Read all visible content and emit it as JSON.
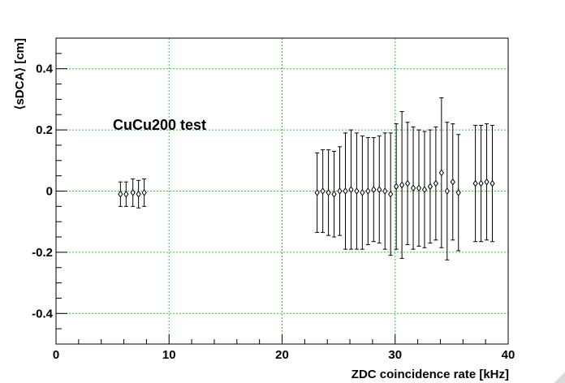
{
  "chart_data": {
    "type": "scatter",
    "title": "",
    "annotation": "CuCu200 test",
    "xlabel": "ZDC coincidence rate [kHz]",
    "ylabel": "⟨sDCA⟩ [cm]",
    "xlim": [
      0,
      40
    ],
    "ylim": [
      -0.5,
      0.5
    ],
    "x_ticks": [
      0,
      10,
      20,
      30,
      40
    ],
    "y_ticks": [
      -0.4,
      -0.2,
      0,
      0.2,
      0.4
    ],
    "x_tick_labels": [
      "0",
      "10",
      "20",
      "30",
      "40"
    ],
    "y_tick_labels": [
      "-0.4",
      "-0.2",
      "0",
      "0.2",
      "0.4"
    ],
    "grid": true,
    "series": [
      {
        "x": [
          5.7,
          6.2,
          6.8,
          7.3,
          7.8,
          23.1,
          23.6,
          24.1,
          24.6,
          25.1,
          25.6,
          26.1,
          26.6,
          27.1,
          27.6,
          28.1,
          28.6,
          29.1,
          29.6,
          30.1,
          30.6,
          31.1,
          31.6,
          32.1,
          32.6,
          33.1,
          33.6,
          34.1,
          34.6,
          35.1,
          35.6,
          37.1,
          37.6,
          38.1,
          38.6
        ],
        "y": [
          -0.01,
          -0.01,
          -0.005,
          -0.01,
          -0.005,
          -0.005,
          0.0,
          -0.005,
          -0.01,
          0.0,
          0.0,
          0.005,
          0.0,
          -0.005,
          0.0,
          0.005,
          0.005,
          0.0,
          -0.01,
          0.015,
          0.02,
          0.025,
          0.01,
          0.01,
          0.005,
          0.015,
          0.025,
          0.06,
          0.0,
          0.03,
          -0.005,
          0.025,
          0.025,
          0.03,
          0.025
        ],
        "err": [
          0.04,
          0.04,
          0.045,
          0.045,
          0.045,
          0.13,
          0.135,
          0.14,
          0.14,
          0.145,
          0.19,
          0.195,
          0.19,
          0.185,
          0.175,
          0.17,
          0.175,
          0.19,
          0.2,
          0.205,
          0.24,
          0.2,
          0.2,
          0.19,
          0.19,
          0.185,
          0.185,
          0.245,
          0.225,
          0.19,
          0.19,
          0.19,
          0.19,
          0.19,
          0.19
        ]
      }
    ]
  }
}
